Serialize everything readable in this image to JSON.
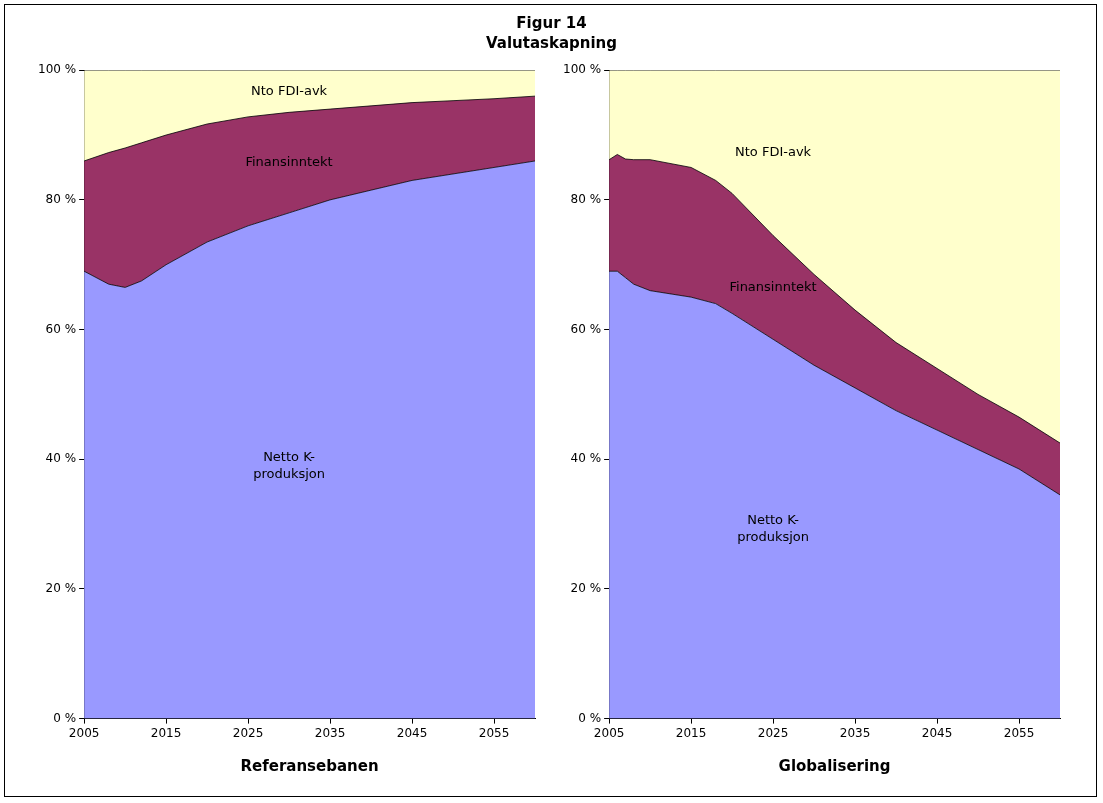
{
  "chart_data": [
    {
      "type": "area",
      "title": "Figur 14",
      "subtitle": "Valutaskapning",
      "xlabel": "Referansebanen",
      "stacked": true,
      "legend": false,
      "x": [
        2005,
        2008,
        2010,
        2012,
        2015,
        2020,
        2025,
        2030,
        2035,
        2040,
        2045,
        2050,
        2055,
        2060
      ],
      "xlim": [
        2005,
        2060
      ],
      "xticks": [
        2005,
        2015,
        2025,
        2035,
        2045,
        2055
      ],
      "ylim": [
        0,
        100
      ],
      "yticks": [
        {
          "value": 0,
          "label": "0 %"
        },
        {
          "value": 20,
          "label": "20 %"
        },
        {
          "value": 40,
          "label": "40 %"
        },
        {
          "value": 60,
          "label": "60 %"
        },
        {
          "value": 80,
          "label": "80 %"
        },
        {
          "value": 100,
          "label": "100 %"
        }
      ],
      "series": [
        {
          "name": "Netto K-produksjon",
          "color": "#9999ff",
          "values": [
            69,
            67,
            66.5,
            67.5,
            70,
            73.5,
            76,
            78,
            80,
            81.5,
            83,
            84,
            85,
            86
          ]
        },
        {
          "name": "Finansinntekt",
          "color": "#993366",
          "values": [
            17,
            20.3,
            21.5,
            21.3,
            20,
            18.2,
            16.8,
            15.5,
            14,
            13,
            12,
            11.3,
            10.6,
            10
          ]
        },
        {
          "name": "Nto FDI-avk",
          "color": "#ffffcc",
          "values": [
            14,
            12.7,
            12,
            11.2,
            10,
            8.3,
            7.2,
            6.5,
            6,
            5.5,
            5,
            4.7,
            4.4,
            4
          ]
        }
      ]
    },
    {
      "type": "area",
      "xlabel": "Globalisering",
      "stacked": true,
      "legend": false,
      "x": [
        2005,
        2006,
        2007,
        2008,
        2010,
        2015,
        2018,
        2020,
        2025,
        2030,
        2035,
        2040,
        2045,
        2050,
        2055,
        2060
      ],
      "xlim": [
        2005,
        2060
      ],
      "xticks": [
        2005,
        2015,
        2025,
        2035,
        2045,
        2055
      ],
      "ylim": [
        0,
        100
      ],
      "yticks": [
        {
          "value": 0,
          "label": "0 %"
        },
        {
          "value": 20,
          "label": "20 %"
        },
        {
          "value": 40,
          "label": "40 %"
        },
        {
          "value": 60,
          "label": "60 %"
        },
        {
          "value": 80,
          "label": "80 %"
        },
        {
          "value": 100,
          "label": "100 %"
        }
      ],
      "series": [
        {
          "name": "Netto K-produksjon",
          "color": "#9999ff",
          "values": [
            69,
            69,
            68,
            67,
            66,
            65,
            64,
            62.5,
            58.5,
            54.5,
            51,
            47.5,
            44.5,
            41.5,
            38.5,
            34.5
          ]
        },
        {
          "name": "Finansinntekt",
          "color": "#993366",
          "values": [
            17.2,
            18,
            18.3,
            19.2,
            20.2,
            20,
            19,
            18.5,
            16,
            14,
            12,
            10.5,
            9.5,
            8.5,
            8,
            8
          ]
        },
        {
          "name": "Nto FDI-avk",
          "color": "#ffffcc",
          "values": [
            13.8,
            13,
            13.7,
            13.8,
            13.8,
            15,
            17,
            19,
            25.5,
            31.5,
            37,
            42,
            46,
            50,
            53.5,
            57.5
          ]
        }
      ]
    }
  ]
}
